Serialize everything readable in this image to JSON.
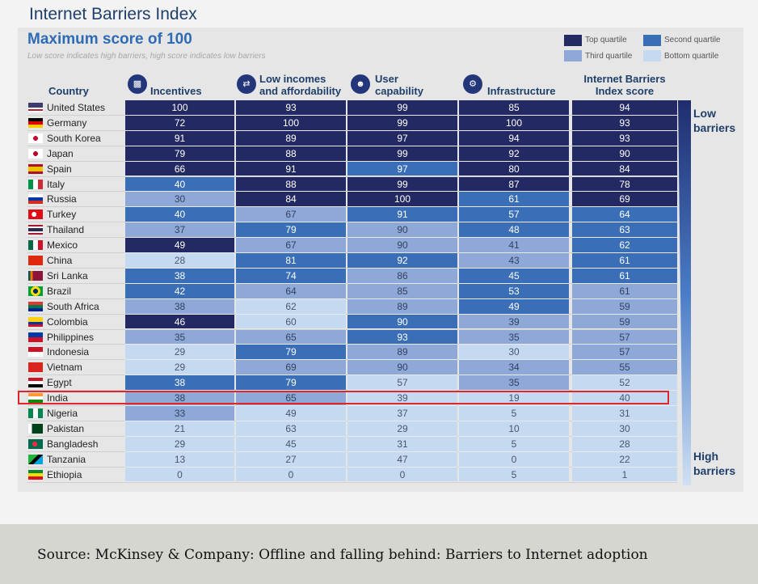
{
  "title": "Internet Barriers Index",
  "subtitle": "Maximum score of 100",
  "note": "Low score indicates high barriers, high score indicates low barriers",
  "legend": [
    {
      "label": "Top quartile",
      "color": "#232a63"
    },
    {
      "label": "Second quartile",
      "color": "#3a6fb8"
    },
    {
      "label": "Third quartile",
      "color": "#8ea9d8"
    },
    {
      "label": "Bottom quartile",
      "color": "#c5daf0"
    }
  ],
  "headers": {
    "country": "Country",
    "incentives": "Incentives",
    "incomes_line1": "Low incomes",
    "incomes_line2": "and affordability",
    "user_line1": "User",
    "user_line2": "capability",
    "infrastructure": "Infrastructure",
    "index_line1": "Internet Barriers",
    "index_line2": "Index score"
  },
  "side_labels": {
    "low_1": "Low",
    "low_2": "barriers",
    "high_1": "High",
    "high_2": "barriers"
  },
  "highlighted_country": "India",
  "source": "Source: McKinsey & Company: Offline and falling behind: Barriers to Internet adoption",
  "chart_data": {
    "type": "table",
    "title": "Internet Barriers Index",
    "columns": [
      "Incentives",
      "Low incomes and affordability",
      "User capability",
      "Infrastructure",
      "Internet Barriers Index score"
    ],
    "rows": [
      {
        "country": "United States",
        "values": [
          100,
          93,
          99,
          85,
          94
        ],
        "quartiles": [
          1,
          1,
          1,
          1,
          1
        ]
      },
      {
        "country": "Germany",
        "values": [
          72,
          100,
          99,
          100,
          93
        ],
        "quartiles": [
          1,
          1,
          1,
          1,
          1
        ]
      },
      {
        "country": "South Korea",
        "values": [
          91,
          89,
          97,
          94,
          93
        ],
        "quartiles": [
          1,
          1,
          1,
          1,
          1
        ]
      },
      {
        "country": "Japan",
        "values": [
          79,
          88,
          99,
          92,
          90
        ],
        "quartiles": [
          1,
          1,
          1,
          1,
          1
        ]
      },
      {
        "country": "Spain",
        "values": [
          66,
          91,
          97,
          80,
          84
        ],
        "quartiles": [
          1,
          1,
          2,
          1,
          1
        ]
      },
      {
        "country": "Italy",
        "values": [
          40,
          88,
          99,
          87,
          78
        ],
        "quartiles": [
          2,
          1,
          1,
          1,
          1
        ]
      },
      {
        "country": "Russia",
        "values": [
          30,
          84,
          100,
          61,
          69
        ],
        "quartiles": [
          3,
          1,
          1,
          2,
          1
        ]
      },
      {
        "country": "Turkey",
        "values": [
          40,
          67,
          91,
          57,
          64
        ],
        "quartiles": [
          2,
          3,
          2,
          2,
          2
        ]
      },
      {
        "country": "Thailand",
        "values": [
          37,
          79,
          90,
          48,
          63
        ],
        "quartiles": [
          3,
          2,
          3,
          2,
          2
        ]
      },
      {
        "country": "Mexico",
        "values": [
          49,
          67,
          90,
          41,
          62
        ],
        "quartiles": [
          1,
          3,
          3,
          3,
          2
        ]
      },
      {
        "country": "China",
        "values": [
          28,
          81,
          92,
          43,
          61
        ],
        "quartiles": [
          4,
          2,
          2,
          3,
          2
        ]
      },
      {
        "country": "Sri Lanka",
        "values": [
          38,
          74,
          86,
          45,
          61
        ],
        "quartiles": [
          2,
          2,
          3,
          2,
          2
        ]
      },
      {
        "country": "Brazil",
        "values": [
          42,
          64,
          85,
          53,
          61
        ],
        "quartiles": [
          2,
          3,
          3,
          2,
          3
        ]
      },
      {
        "country": "South Africa",
        "values": [
          38,
          62,
          89,
          49,
          59
        ],
        "quartiles": [
          3,
          4,
          3,
          2,
          3
        ]
      },
      {
        "country": "Colombia",
        "values": [
          46,
          60,
          90,
          39,
          59
        ],
        "quartiles": [
          1,
          4,
          2,
          3,
          3
        ]
      },
      {
        "country": "Philippines",
        "values": [
          35,
          65,
          93,
          35,
          57
        ],
        "quartiles": [
          3,
          3,
          2,
          3,
          3
        ]
      },
      {
        "country": "Indonesia",
        "values": [
          29,
          79,
          89,
          30,
          57
        ],
        "quartiles": [
          4,
          2,
          3,
          4,
          3
        ]
      },
      {
        "country": "Vietnam",
        "values": [
          29,
          69,
          90,
          34,
          55
        ],
        "quartiles": [
          4,
          3,
          3,
          3,
          3
        ]
      },
      {
        "country": "Egypt",
        "values": [
          38,
          79,
          57,
          35,
          52
        ],
        "quartiles": [
          2,
          2,
          4,
          3,
          4
        ]
      },
      {
        "country": "India",
        "values": [
          38,
          65,
          39,
          19,
          40
        ],
        "quartiles": [
          3,
          3,
          4,
          4,
          4
        ]
      },
      {
        "country": "Nigeria",
        "values": [
          33,
          49,
          37,
          5,
          31
        ],
        "quartiles": [
          3,
          4,
          4,
          4,
          4
        ]
      },
      {
        "country": "Pakistan",
        "values": [
          21,
          63,
          29,
          10,
          30
        ],
        "quartiles": [
          4,
          4,
          4,
          4,
          4
        ]
      },
      {
        "country": "Bangladesh",
        "values": [
          29,
          45,
          31,
          5,
          28
        ],
        "quartiles": [
          4,
          4,
          4,
          4,
          4
        ]
      },
      {
        "country": "Tanzania",
        "values": [
          13,
          27,
          47,
          0,
          22
        ],
        "quartiles": [
          4,
          4,
          4,
          4,
          4
        ]
      },
      {
        "country": "Ethiopia",
        "values": [
          0,
          0,
          0,
          5,
          1
        ],
        "quartiles": [
          4,
          4,
          4,
          4,
          4
        ]
      }
    ]
  }
}
